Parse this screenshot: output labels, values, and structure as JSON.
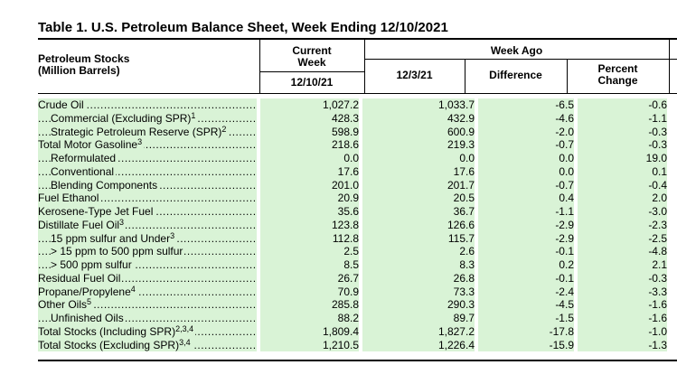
{
  "title": "Table 1.   U.S. Petroleum Balance Sheet, Week Ending 12/10/2021",
  "header": {
    "row_label_line1": "Petroleum Stocks",
    "row_label_line2": "(Million Barrels)",
    "current_week_line1": "Current",
    "current_week_line2": "Week",
    "current_week_date": "12/10/21",
    "week_ago": "Week Ago",
    "week_ago_date": "12/3/21",
    "difference": "Difference",
    "percent_line1": "Percent",
    "percent_line2": "Change"
  },
  "rows": [
    {
      "label": "Crude Oil",
      "sup": "",
      "indent": 0,
      "current": "1,027.2",
      "week_ago": "1,033.7",
      "difference": "-6.5",
      "percent": "-0.6"
    },
    {
      "label": "Commercial (Excluding SPR)",
      "sup": "1",
      "indent": 1,
      "current": "428.3",
      "week_ago": "432.9",
      "difference": "-4.6",
      "percent": "-1.1"
    },
    {
      "label": "Strategic Petroleum Reserve (SPR)",
      "sup": "2",
      "indent": 1,
      "current": "598.9",
      "week_ago": "600.9",
      "difference": "-2.0",
      "percent": "-0.3"
    },
    {
      "label": "Total Motor Gasoline",
      "sup": "3",
      "indent": 0,
      "current": "218.6",
      "week_ago": "219.3",
      "difference": "-0.7",
      "percent": "-0.3"
    },
    {
      "label": "Reformulated",
      "sup": "",
      "indent": 1,
      "current": "0.0",
      "week_ago": "0.0",
      "difference": "0.0",
      "percent": "19.0"
    },
    {
      "label": "Conventional",
      "sup": "",
      "indent": 1,
      "current": "17.6",
      "week_ago": "17.6",
      "difference": "0.0",
      "percent": "0.1"
    },
    {
      "label": "Blending Components",
      "sup": "",
      "indent": 1,
      "current": "201.0",
      "week_ago": "201.7",
      "difference": "-0.7",
      "percent": "-0.4"
    },
    {
      "label": "Fuel Ethanol",
      "sup": "",
      "indent": 0,
      "current": "20.9",
      "week_ago": "20.5",
      "difference": "0.4",
      "percent": "2.0"
    },
    {
      "label": "Kerosene-Type Jet Fuel",
      "sup": "",
      "indent": 0,
      "current": "35.6",
      "week_ago": "36.7",
      "difference": "-1.1",
      "percent": "-3.0"
    },
    {
      "label": "Distillate Fuel Oil",
      "sup": "3",
      "indent": 0,
      "current": "123.8",
      "week_ago": "126.6",
      "difference": "-2.9",
      "percent": "-2.3"
    },
    {
      "label": "15 ppm sulfur and Under",
      "sup": "3",
      "indent": 1,
      "current": "112.8",
      "week_ago": "115.7",
      "difference": "-2.9",
      "percent": "-2.5"
    },
    {
      "label": "> 15 ppm to 500 ppm sulfur",
      "sup": "",
      "indent": 1,
      "current": "2.5",
      "week_ago": "2.6",
      "difference": "-0.1",
      "percent": "-4.8"
    },
    {
      "label": "> 500 ppm sulfur",
      "sup": "",
      "indent": 1,
      "current": "8.5",
      "week_ago": "8.3",
      "difference": "0.2",
      "percent": "2.1"
    },
    {
      "label": "Residual Fuel Oil",
      "sup": "",
      "indent": 0,
      "current": "26.7",
      "week_ago": "26.8",
      "difference": "-0.1",
      "percent": "-0.3"
    },
    {
      "label": "Propane/Propylene",
      "sup": "4",
      "indent": 0,
      "current": "70.9",
      "week_ago": "73.3",
      "difference": "-2.4",
      "percent": "-3.3"
    },
    {
      "label": "Other Oils",
      "sup": "5",
      "indent": 0,
      "current": "285.8",
      "week_ago": "290.3",
      "difference": "-4.5",
      "percent": "-1.6"
    },
    {
      "label": "Unfinished Oils",
      "sup": "",
      "indent": 1,
      "current": "88.2",
      "week_ago": "89.7",
      "difference": "-1.5",
      "percent": "-1.6"
    },
    {
      "label": "Total Stocks (Including SPR)",
      "sup": "2,3,4",
      "indent": 0,
      "current": "1,809.4",
      "week_ago": "1,827.2",
      "difference": "-17.8",
      "percent": "-1.0"
    },
    {
      "label": "Total Stocks (Excluding SPR)",
      "sup": "3,4",
      "indent": 0,
      "current": "1,210.5",
      "week_ago": "1,226.4",
      "difference": "-15.9",
      "percent": "-1.3"
    }
  ],
  "colors": {
    "row_fill": "#d9f3d6",
    "rule": "#000000"
  }
}
